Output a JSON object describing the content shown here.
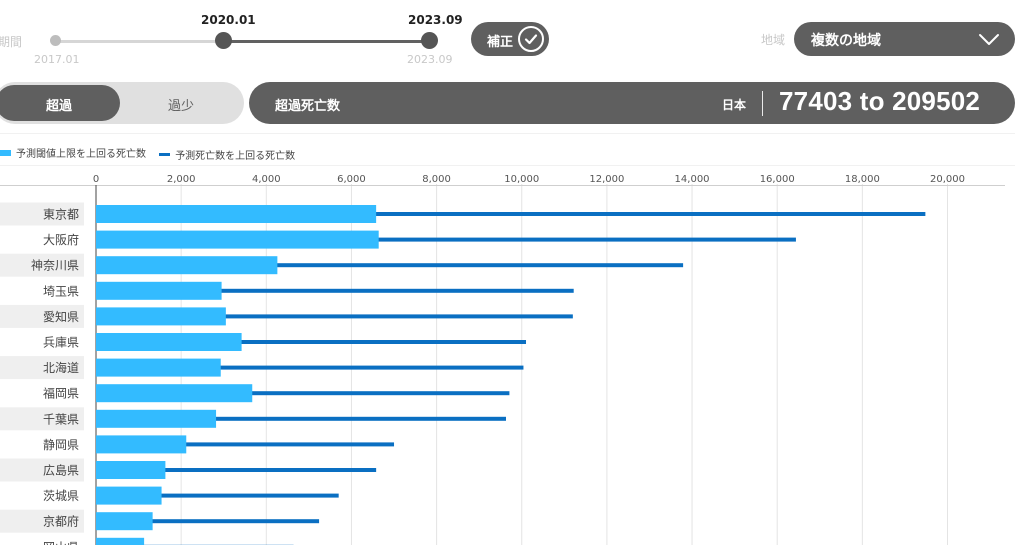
{
  "controls": {
    "period_label": "期間",
    "slider_start_value": "2020.01",
    "slider_end_value": "2023.09",
    "slider_min_label": "2017.01",
    "slider_max_label": "2023.09",
    "correction_label": "補正",
    "correction_checked": true,
    "region_label": "地域",
    "region_value": "複数の地域"
  },
  "mode_switch": {
    "active": "超過",
    "inactive": "過少"
  },
  "metric": {
    "title": "超過死亡数",
    "region": "日本",
    "range": "77403 to 209502"
  },
  "colors": {
    "upper_bound": "#33bbff",
    "predicted": "#0a6fc2",
    "header_bg": "#5f5f5f"
  },
  "chart_data": {
    "type": "bar",
    "legend": [
      {
        "name": "予測閾値上限を上回る死亡数",
        "color": "#33bbff"
      },
      {
        "name": "予測死亡数を上回る死亡数",
        "color": "#0a6fc2"
      }
    ],
    "xlim": [
      0,
      21000
    ],
    "xticks": [
      0,
      2000,
      4000,
      6000,
      8000,
      10000,
      12000,
      14000,
      16000,
      18000,
      20000
    ],
    "xtick_labels": [
      "0",
      "2,000",
      "4,000",
      "6,000",
      "8,000",
      "10,000",
      "12,000",
      "14,000",
      "16,000",
      "18,000",
      "20,000"
    ],
    "grid": true,
    "categories": [
      "東京都",
      "大阪府",
      "神奈川県",
      "埼玉県",
      "愛知県",
      "兵庫県",
      "北海道",
      "福岡県",
      "千葉県",
      "静岡県",
      "広島県",
      "茨城県",
      "京都府",
      "岡山県"
    ],
    "series": [
      {
        "name": "予測閾値上限を上回る死亡数",
        "values": [
          6580,
          6640,
          4260,
          2950,
          3050,
          3420,
          2930,
          3670,
          2820,
          2120,
          1630,
          1540,
          1330,
          1130
        ]
      },
      {
        "name": "予測死亡数を上回る死亡数",
        "values": [
          19480,
          16440,
          13790,
          11220,
          11200,
          10100,
          10040,
          9710,
          9630,
          7000,
          6580,
          5700,
          5240,
          4640
        ]
      }
    ]
  }
}
